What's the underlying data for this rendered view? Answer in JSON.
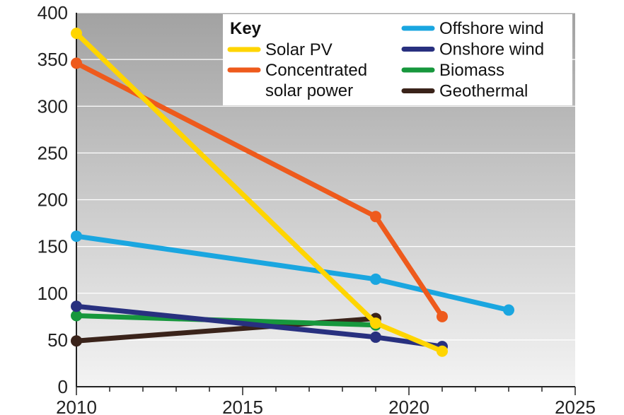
{
  "chart_data": {
    "type": "line",
    "title": "",
    "xlabel": "",
    "ylabel": "",
    "xlim": [
      2010,
      2025
    ],
    "ylim": [
      0,
      400
    ],
    "x_ticks": [
      "2010",
      "2015",
      "2020",
      "2025"
    ],
    "y_ticks": [
      "0",
      "50",
      "100",
      "150",
      "200",
      "250",
      "300",
      "350",
      "400"
    ],
    "grid": "horizontal",
    "legend": {
      "title": "Key",
      "placement": "top-right"
    },
    "series": [
      {
        "name": "Solar PV",
        "color": "#ffd500",
        "x": [
          2010,
          2019,
          2021
        ],
        "y": [
          378,
          68,
          38
        ]
      },
      {
        "name": "Concentrated solar power",
        "name_lines": [
          "Concentrated",
          "solar power"
        ],
        "color": "#ee5a1c",
        "x": [
          2010,
          2019,
          2021
        ],
        "y": [
          346,
          182,
          75
        ]
      },
      {
        "name": "Offshore wind",
        "color": "#1aa6e0",
        "x": [
          2010,
          2019,
          2023
        ],
        "y": [
          161,
          115,
          82
        ]
      },
      {
        "name": "Onshore wind",
        "color": "#28307f",
        "x": [
          2010,
          2019,
          2021
        ],
        "y": [
          86,
          53,
          43
        ]
      },
      {
        "name": "Biomass",
        "color": "#17973d",
        "x": [
          2010,
          2019
        ],
        "y": [
          76,
          66
        ]
      },
      {
        "name": "Geothermal",
        "color": "#3a231a",
        "x": [
          2010,
          2019
        ],
        "y": [
          49,
          73
        ]
      }
    ],
    "draw_order": [
      "Geothermal",
      "Biomass",
      "Onshore wind",
      "Offshore wind",
      "Concentrated solar power",
      "Solar PV"
    ],
    "legend_layout": {
      "left_column": [
        "Solar PV",
        "Concentrated solar power"
      ],
      "right_column": [
        "Offshore wind",
        "Onshore wind",
        "Biomass",
        "Geothermal"
      ]
    }
  }
}
